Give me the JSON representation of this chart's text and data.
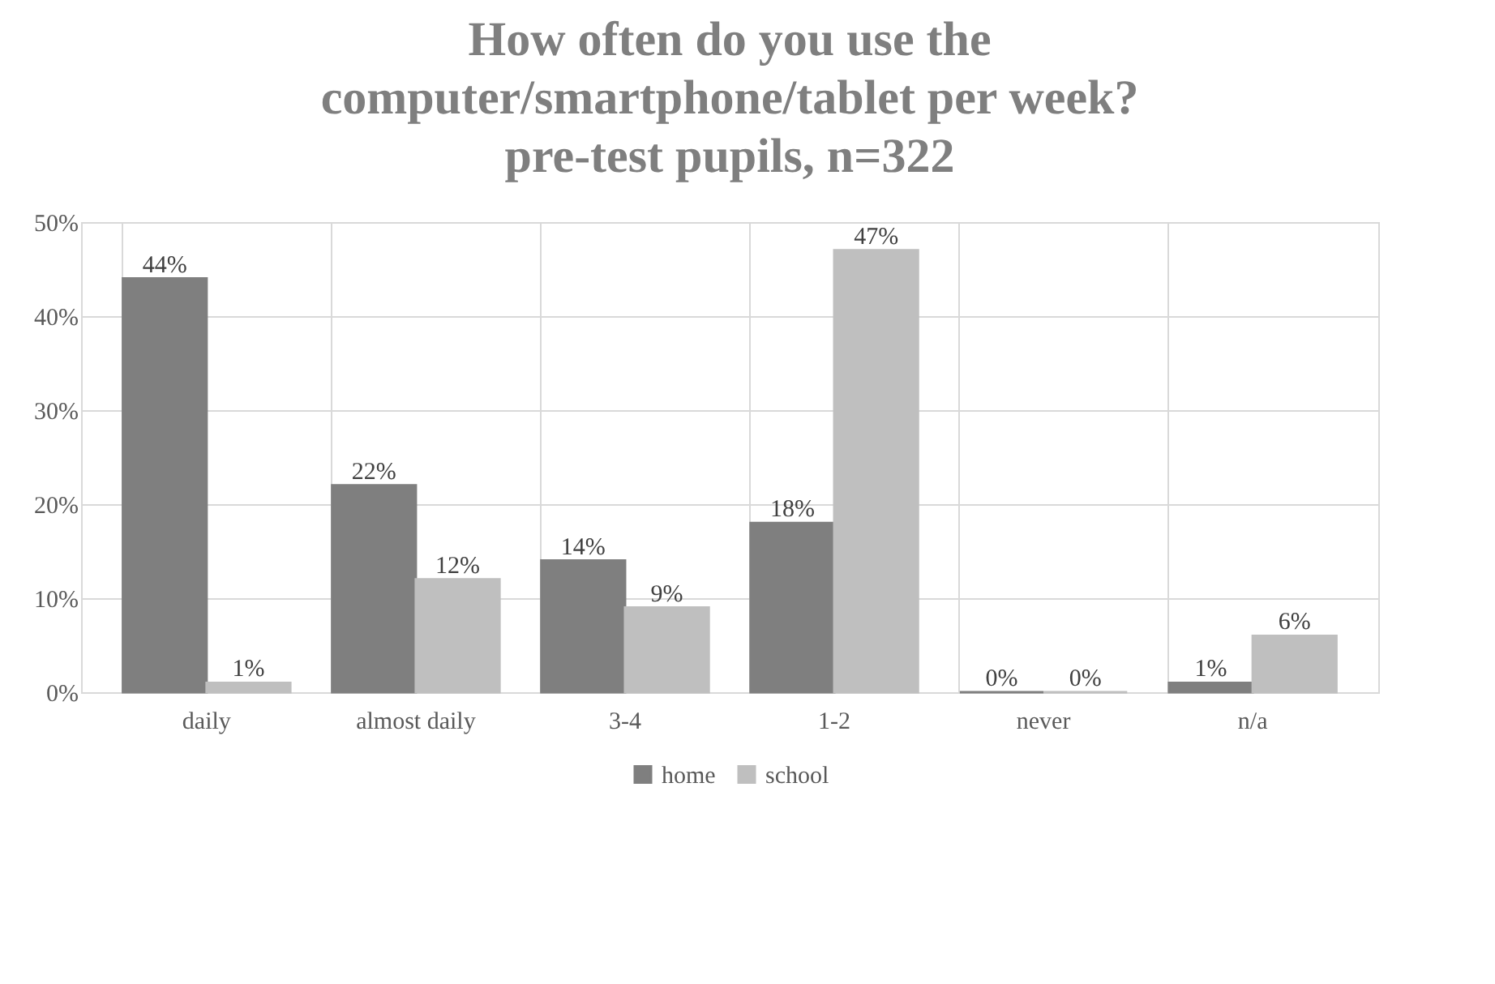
{
  "chart_data": {
    "type": "bar",
    "title": "How often do you use the\ncomputer/smartphone/tablet  per week?\npre-test pupils,  n=322",
    "categories": [
      "daily",
      "almost daily",
      "3-4",
      "1-2",
      "never",
      "n/a"
    ],
    "series": [
      {
        "name": "home",
        "color": "#7f7f7f",
        "values": [
          44,
          22,
          14,
          18,
          0,
          1
        ],
        "value_labels": [
          "44%",
          "22%",
          "14%",
          "18%",
          "0%",
          "1%"
        ]
      },
      {
        "name": "school",
        "color": "#bfbfbf",
        "values": [
          1,
          12,
          9,
          47,
          0,
          6
        ],
        "value_labels": [
          "1%",
          "12%",
          "9%",
          "47%",
          "0%",
          "6%"
        ]
      }
    ],
    "ylim": [
      0,
      50
    ],
    "yticks": [
      {
        "value": 0,
        "label": "0%"
      },
      {
        "value": 10,
        "label": "10%"
      },
      {
        "value": 20,
        "label": "20%"
      },
      {
        "value": 30,
        "label": "30%"
      },
      {
        "value": 40,
        "label": "40%"
      },
      {
        "value": 50,
        "label": "50%"
      }
    ],
    "grid": true,
    "legend": "bottom"
  }
}
